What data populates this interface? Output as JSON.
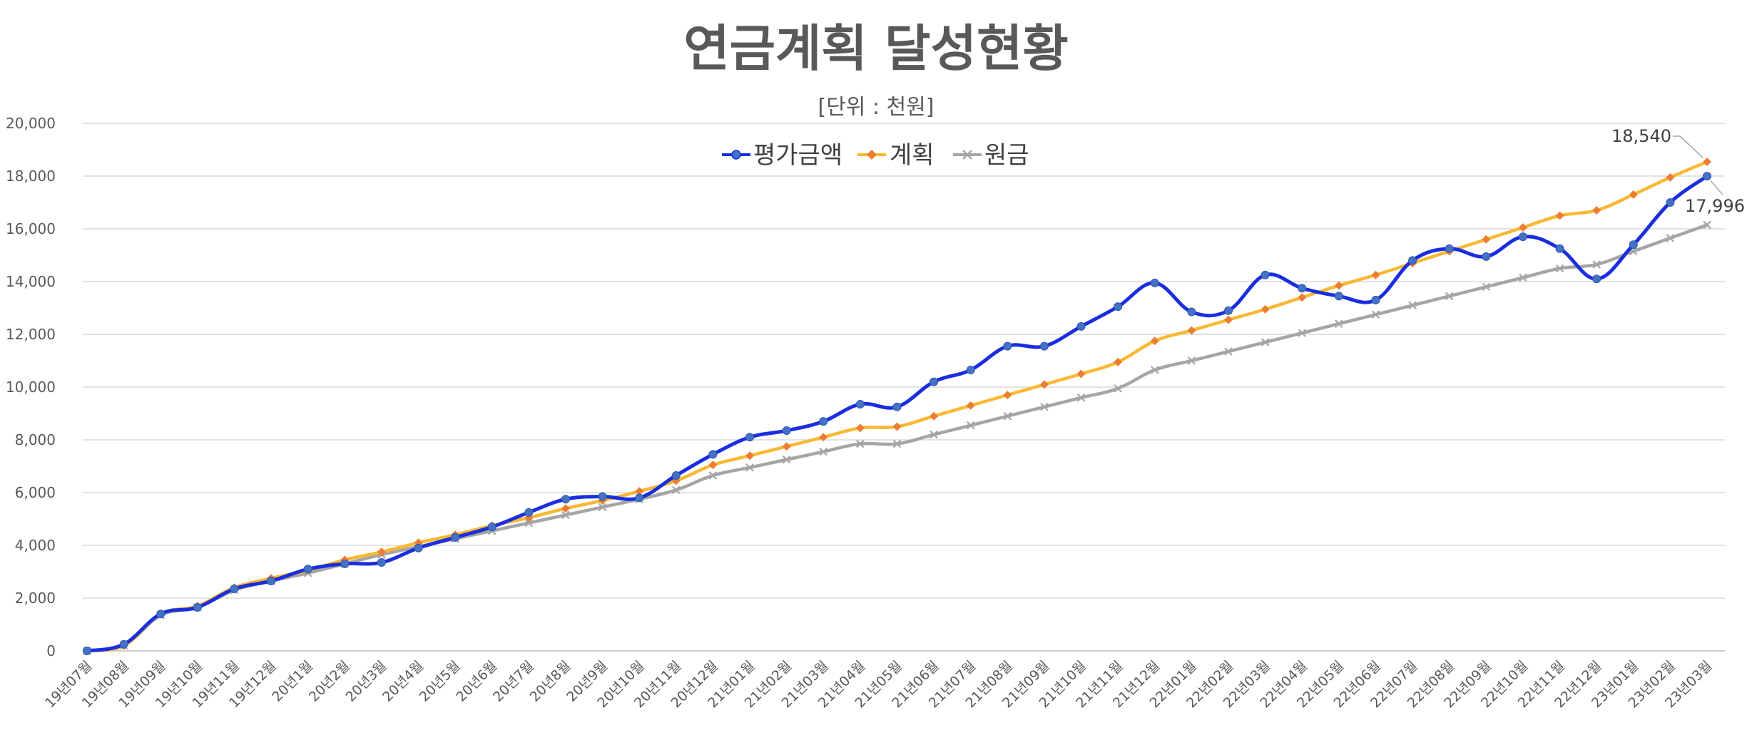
{
  "chart_data": {
    "type": "line",
    "title": "연금계획 달성현황",
    "subtitle": "[단위 : 천원]",
    "xlabel": "",
    "ylabel": "",
    "ylim": [
      0,
      20000
    ],
    "yticks": [
      0,
      2000,
      4000,
      6000,
      8000,
      10000,
      12000,
      14000,
      16000,
      18000,
      20000
    ],
    "ytick_labels": [
      "0",
      "2,000",
      "4,000",
      "6,000",
      "8,000",
      "10,000",
      "12,000",
      "14,000",
      "16,000",
      "18,000",
      "20,000"
    ],
    "grid": true,
    "legend_position": "top-center",
    "categories": [
      "19년07월",
      "19년08월",
      "19년09월",
      "19년10월",
      "19년11월",
      "19년12월",
      "20년1월",
      "20년2월",
      "20년3월",
      "20년4월",
      "20년5월",
      "20년6월",
      "20년7월",
      "20년8월",
      "20년9월",
      "20년10월",
      "20년11월",
      "20년12월",
      "21년01월",
      "21년02월",
      "21년03월",
      "21년04월",
      "21년05월",
      "21년06월",
      "21년07월",
      "21년08월",
      "21년09월",
      "21년10월",
      "21년11월",
      "21년12월",
      "22년01월",
      "22년02월",
      "22년03월",
      "22년04월",
      "22년05월",
      "22년06월",
      "22년07월",
      "22년08월",
      "22년09월",
      "22년10월",
      "22년11월",
      "22년12월",
      "23년01월",
      "23년02월",
      "23년03월"
    ],
    "series": [
      {
        "name": "평가금액",
        "color": "#1a2ee0",
        "marker": "circle",
        "marker_color": "#4472c4",
        "values": [
          0,
          250,
          1400,
          1650,
          2350,
          2650,
          3100,
          3300,
          3350,
          3900,
          4300,
          4700,
          5250,
          5750,
          5850,
          5800,
          6650,
          7450,
          8100,
          8350,
          8700,
          9350,
          9250,
          10200,
          10650,
          11550,
          11550,
          12300,
          13050,
          13950,
          12850,
          12900,
          14250,
          13750,
          13450,
          13300,
          14800,
          15250,
          14950,
          15700,
          15250,
          14100,
          15400,
          17000,
          17996
        ],
        "end_label": "17,996"
      },
      {
        "name": "계획",
        "color": "#f9b834",
        "marker": "diamond",
        "marker_color": "#ed7d31",
        "values": [
          0,
          200,
          1400,
          1700,
          2400,
          2750,
          3050,
          3450,
          3750,
          4100,
          4400,
          4750,
          5050,
          5400,
          5700,
          6050,
          6450,
          7050,
          7400,
          7750,
          8100,
          8450,
          8500,
          8900,
          9300,
          9700,
          10100,
          10500,
          10950,
          11750,
          12150,
          12550,
          12950,
          13400,
          13850,
          14250,
          14700,
          15150,
          15600,
          16050,
          16500,
          16700,
          17300,
          17950,
          18540
        ],
        "end_label": "18,540"
      },
      {
        "name": "원금",
        "color": "#a5a5a5",
        "marker": "x",
        "marker_color": "#a5a5a5",
        "values": [
          0,
          200,
          1350,
          1650,
          2300,
          2650,
          2950,
          3300,
          3650,
          3950,
          4250,
          4550,
          4850,
          5150,
          5450,
          5750,
          6100,
          6650,
          6950,
          7250,
          7550,
          7850,
          7850,
          8200,
          8550,
          8900,
          9250,
          9600,
          9950,
          10650,
          11000,
          11350,
          11700,
          12050,
          12400,
          12750,
          13100,
          13450,
          13800,
          14150,
          14500,
          14650,
          15150,
          15650,
          16150
        ]
      }
    ]
  }
}
